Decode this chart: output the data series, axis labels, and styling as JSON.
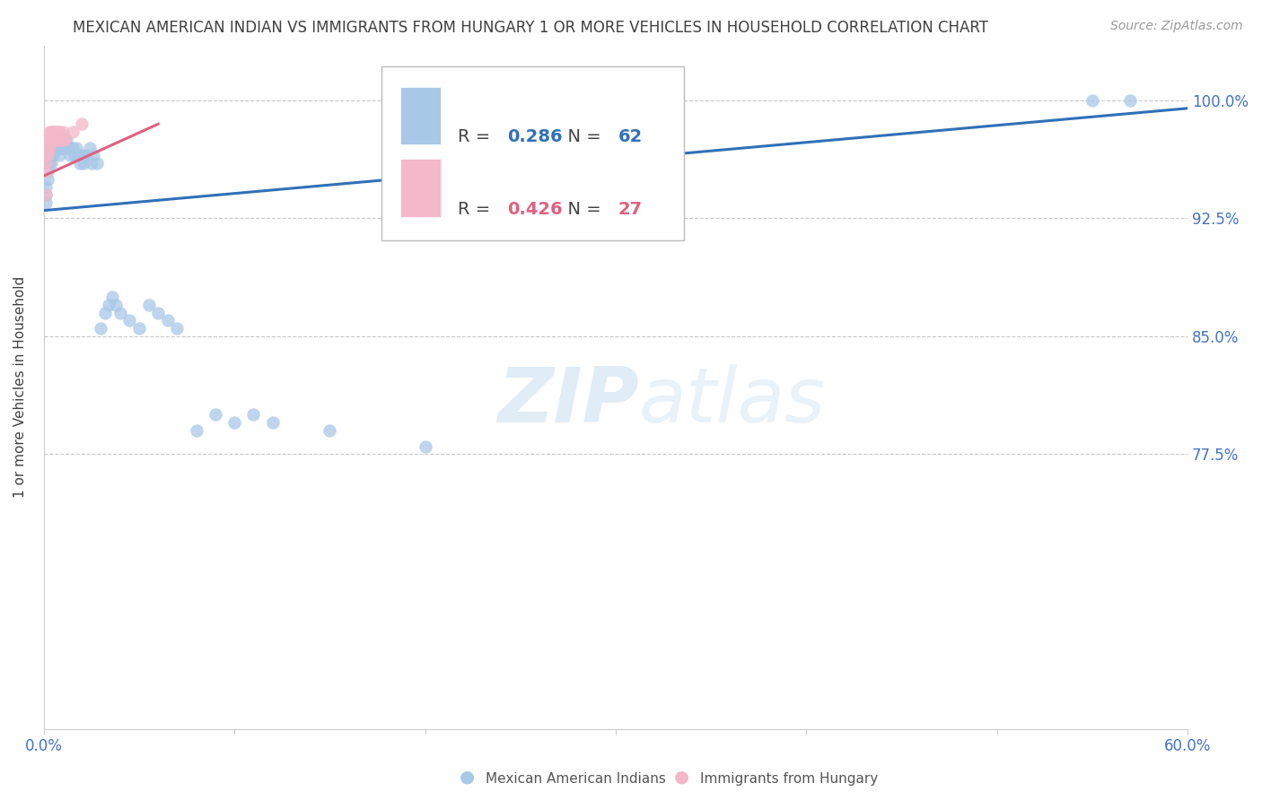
{
  "title": "MEXICAN AMERICAN INDIAN VS IMMIGRANTS FROM HUNGARY 1 OR MORE VEHICLES IN HOUSEHOLD CORRELATION CHART",
  "source": "Source: ZipAtlas.com",
  "ylabel": "1 or more Vehicles in Household",
  "x_min": 0.0,
  "x_max": 0.6,
  "y_min": 0.6,
  "y_max": 1.035,
  "y_tick_labels": [
    "100.0%",
    "92.5%",
    "85.0%",
    "77.5%"
  ],
  "y_tick_values": [
    1.0,
    0.925,
    0.85,
    0.775
  ],
  "legend_blue_label": "Mexican American Indians",
  "legend_pink_label": "Immigrants from Hungary",
  "R_blue": 0.286,
  "N_blue": 62,
  "R_pink": 0.426,
  "N_pink": 27,
  "blue_color": "#a8c8e8",
  "pink_color": "#f4b8c8",
  "line_blue_color": "#3070b8",
  "line_pink_color": "#e06080",
  "watermark_color": "#ddeeff",
  "blue_scatter_x": [
    0.001,
    0.001,
    0.001,
    0.002,
    0.002,
    0.003,
    0.003,
    0.003,
    0.004,
    0.004,
    0.004,
    0.005,
    0.005,
    0.006,
    0.006,
    0.007,
    0.007,
    0.008,
    0.008,
    0.008,
    0.009,
    0.009,
    0.01,
    0.01,
    0.011,
    0.011,
    0.012,
    0.013,
    0.014,
    0.015,
    0.016,
    0.017,
    0.018,
    0.019,
    0.02,
    0.021,
    0.022,
    0.024,
    0.025,
    0.026,
    0.028,
    0.03,
    0.032,
    0.034,
    0.036,
    0.038,
    0.04,
    0.045,
    0.05,
    0.055,
    0.06,
    0.065,
    0.07,
    0.08,
    0.09,
    0.1,
    0.11,
    0.12,
    0.15,
    0.2,
    0.55,
    0.57
  ],
  "blue_scatter_y": [
    0.935,
    0.94,
    0.945,
    0.95,
    0.955,
    0.96,
    0.965,
    0.97,
    0.96,
    0.965,
    0.97,
    0.965,
    0.97,
    0.975,
    0.97,
    0.975,
    0.97,
    0.975,
    0.97,
    0.965,
    0.975,
    0.97,
    0.975,
    0.97,
    0.975,
    0.97,
    0.975,
    0.97,
    0.965,
    0.97,
    0.965,
    0.97,
    0.965,
    0.96,
    0.965,
    0.96,
    0.965,
    0.97,
    0.96,
    0.965,
    0.96,
    0.855,
    0.865,
    0.87,
    0.875,
    0.87,
    0.865,
    0.86,
    0.855,
    0.87,
    0.865,
    0.86,
    0.855,
    0.79,
    0.8,
    0.795,
    0.8,
    0.795,
    0.79,
    0.78,
    1.0,
    1.0
  ],
  "pink_scatter_x": [
    0.001,
    0.001,
    0.001,
    0.001,
    0.001,
    0.002,
    0.002,
    0.002,
    0.003,
    0.003,
    0.003,
    0.004,
    0.004,
    0.005,
    0.005,
    0.006,
    0.006,
    0.007,
    0.007,
    0.008,
    0.008,
    0.009,
    0.01,
    0.01,
    0.011,
    0.015,
    0.02
  ],
  "pink_scatter_y": [
    0.94,
    0.955,
    0.96,
    0.965,
    0.97,
    0.965,
    0.97,
    0.975,
    0.97,
    0.975,
    0.98,
    0.975,
    0.98,
    0.975,
    0.98,
    0.975,
    0.98,
    0.975,
    0.98,
    0.975,
    0.98,
    0.975,
    0.98,
    0.975,
    0.975,
    0.98,
    0.985
  ],
  "blue_line_x": [
    0.0,
    0.6
  ],
  "blue_line_y": [
    0.93,
    0.995
  ],
  "pink_line_x": [
    0.0,
    0.06
  ],
  "pink_line_y": [
    0.952,
    0.985
  ],
  "background_color": "#ffffff",
  "grid_color": "#c8c8c8",
  "axis_color": "#cccccc",
  "title_color": "#404040",
  "ylabel_color": "#404040",
  "tick_label_color": "#4472c4",
  "source_color": "#999999"
}
